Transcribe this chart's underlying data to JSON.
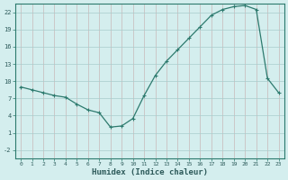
{
  "x": [
    0,
    1,
    2,
    3,
    4,
    5,
    6,
    7,
    8,
    9,
    10,
    11,
    12,
    13,
    14,
    15,
    16,
    17,
    18,
    19,
    20,
    21,
    22,
    23
  ],
  "y": [
    9.0,
    8.5,
    8.0,
    7.5,
    7.2,
    6.0,
    5.0,
    4.5,
    2.0,
    2.2,
    3.5,
    7.5,
    11.0,
    13.5,
    15.5,
    17.5,
    19.5,
    21.5,
    22.5,
    23.0,
    23.2,
    22.5,
    10.5,
    8.0
  ],
  "xlabel": "Humidex (Indice chaleur)",
  "xlim": [
    -0.5,
    23.5
  ],
  "ylim": [
    -3.5,
    23.5
  ],
  "yticks": [
    -2,
    1,
    4,
    7,
    10,
    13,
    16,
    19,
    22
  ],
  "xticks": [
    0,
    1,
    2,
    3,
    4,
    5,
    6,
    7,
    8,
    9,
    10,
    11,
    12,
    13,
    14,
    15,
    16,
    17,
    18,
    19,
    20,
    21,
    22,
    23
  ],
  "line_color": "#2d7a6e",
  "bg_color": "#d4eeee",
  "vgrid_color": "#c4d8d8",
  "hgrid_color": "#c4d8d8"
}
